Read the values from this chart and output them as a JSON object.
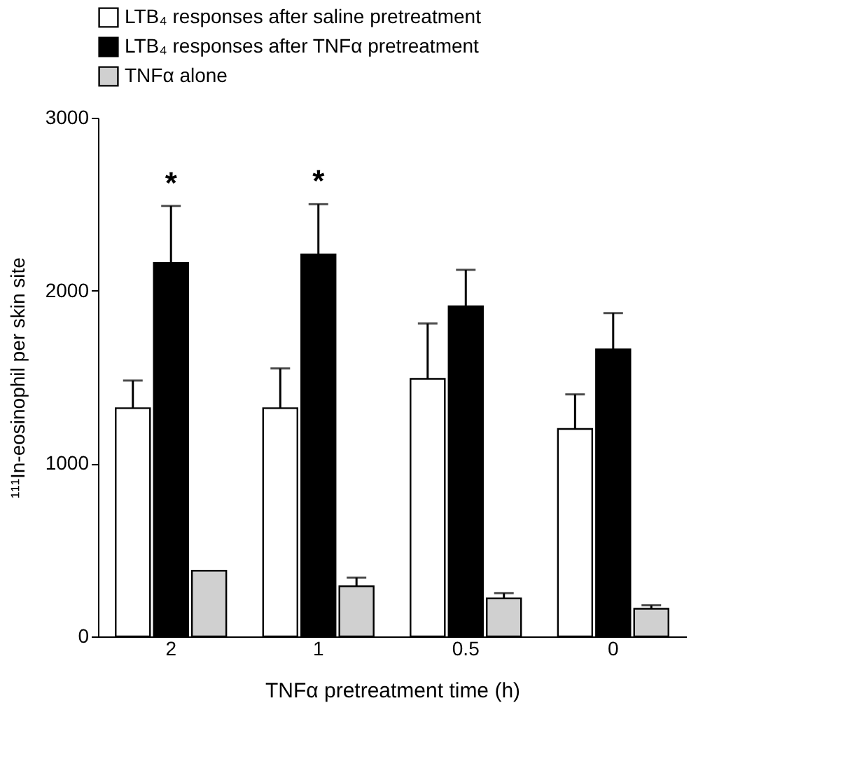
{
  "chart_data": {
    "type": "bar",
    "xlabel": "TNFα pretreatment time (h)",
    "ylabel": "¹¹¹In-eosinophil per skin site",
    "categories": [
      "2",
      "1",
      "0.5",
      "0"
    ],
    "series": [
      {
        "name": "LTB₄ responses after saline pretreatment",
        "color": "#ffffff",
        "values": [
          1320,
          1320,
          1490,
          1200
        ],
        "errors": [
          [
            1320,
            1480
          ],
          [
            1320,
            1550
          ],
          [
            1490,
            1810
          ],
          [
            1200,
            1400
          ]
        ]
      },
      {
        "name": "LTB₄ responses after TNFα pretreatment",
        "color": "#000000",
        "values": [
          2160,
          2210,
          1910,
          1660
        ],
        "errors": [
          [
            2160,
            2490
          ],
          [
            2210,
            2500
          ],
          [
            1910,
            2120
          ],
          [
            1660,
            1870
          ]
        ]
      },
      {
        "name": "TNFα alone",
        "color": "#d0d0d0",
        "values": [
          380,
          290,
          220,
          160
        ],
        "errors": [
          null,
          [
            290,
            340
          ],
          [
            220,
            250
          ],
          [
            160,
            180
          ]
        ]
      }
    ],
    "annotations": [
      {
        "text": "*",
        "x": "2",
        "y": 2490
      },
      {
        "text": "*",
        "x": "1",
        "y": 2500
      }
    ],
    "ylim": [
      0,
      3000
    ],
    "yticks": [
      0,
      1000,
      2000,
      3000
    ],
    "grid": false,
    "legend": "top"
  }
}
